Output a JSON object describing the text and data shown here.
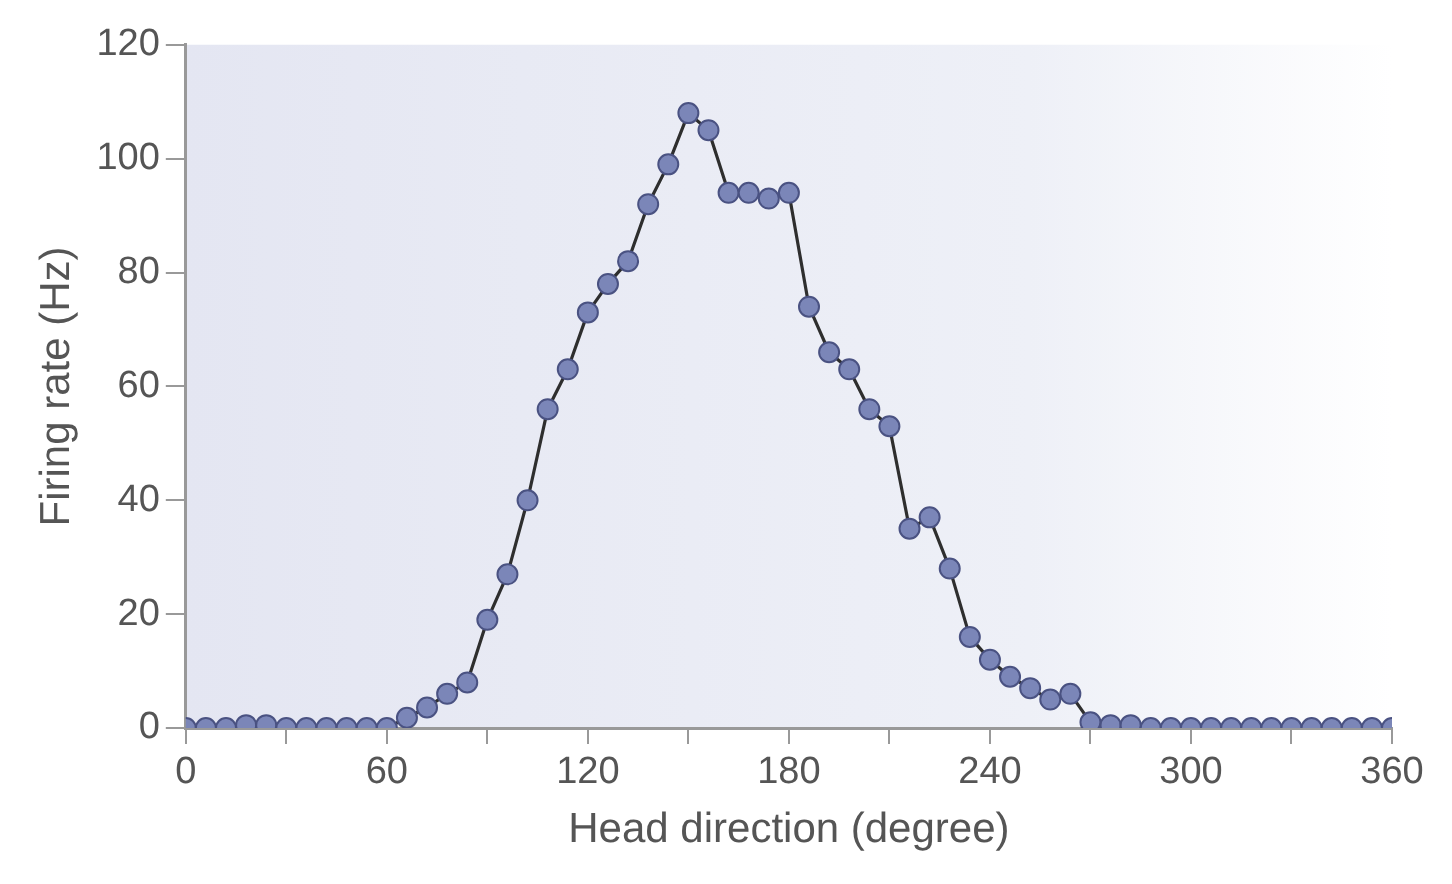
{
  "chart_data": {
    "type": "line",
    "xlabel": "Head direction (degree)",
    "ylabel": "Firing rate (Hz)",
    "x": [
      0,
      6,
      12,
      18,
      24,
      30,
      36,
      42,
      48,
      54,
      60,
      66,
      72,
      78,
      84,
      90,
      96,
      102,
      108,
      114,
      120,
      126,
      132,
      138,
      144,
      150,
      156,
      162,
      168,
      174,
      180,
      186,
      192,
      198,
      204,
      210,
      216,
      222,
      228,
      234,
      240,
      246,
      252,
      258,
      264,
      270,
      276,
      282,
      288,
      294,
      300,
      306,
      312,
      318,
      324,
      330,
      336,
      342,
      348,
      354,
      360
    ],
    "series": [
      {
        "color": "#7b86b8",
        "values": [
          0,
          0,
          0,
          0.5,
          0.5,
          0,
          0,
          0,
          0,
          0,
          0,
          1.8,
          3.6,
          6,
          8,
          19,
          27,
          40,
          56,
          63,
          73,
          78,
          82,
          92,
          99,
          108,
          105,
          94,
          94,
          93,
          94,
          74,
          66,
          63,
          56,
          53,
          35,
          37,
          28,
          16,
          12,
          9,
          7,
          5,
          6,
          1,
          0.5,
          0.5,
          0,
          0,
          0,
          0,
          0,
          0,
          0,
          0,
          0,
          0,
          0,
          0,
          0
        ]
      }
    ],
    "xlim": [
      0,
      360
    ],
    "ylim": [
      0,
      120
    ],
    "xticks": [
      0,
      {
        "value": 30,
        "label": null
      },
      60,
      {
        "value": 90,
        "label": null
      },
      120,
      {
        "value": 150,
        "label": null
      },
      180,
      {
        "value": 210,
        "label": null
      },
      240,
      {
        "value": 270,
        "label": null
      },
      300,
      {
        "value": 330,
        "label": null
      },
      360
    ],
    "yticks": [
      0,
      20,
      40,
      60,
      80,
      100,
      120
    ],
    "grid": false,
    "legend": false,
    "marker": "circle",
    "line_style": "solid"
  }
}
